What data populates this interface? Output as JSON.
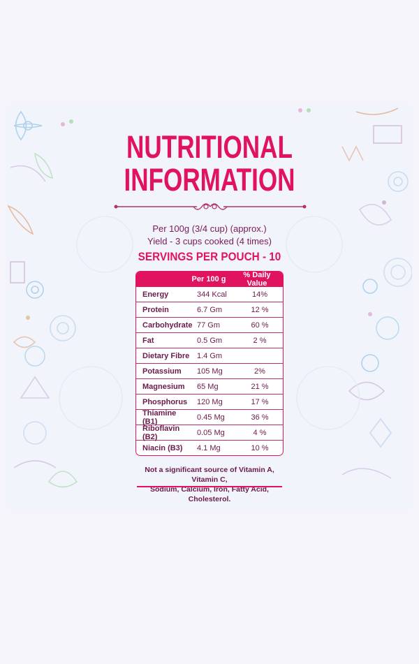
{
  "title": {
    "line1": "NUTRITIONAL",
    "line2": "INFORMATION"
  },
  "subtitle": {
    "line1": "Per 100g (3/4 cup) (approx.)",
    "line2": "Yield - 3 cups cooked (4 times)"
  },
  "servings": "SERVINGS PER POUCH - 10",
  "table": {
    "headers": [
      "",
      "Per 100 g",
      "% Daily Value"
    ],
    "rows": [
      {
        "nutrient": "Energy",
        "per100": "344 Kcal",
        "dv": "14%"
      },
      {
        "nutrient": "Protein",
        "per100": "6.7 Gm",
        "dv": "12 %"
      },
      {
        "nutrient": "Carbohydrate",
        "per100": "77 Gm",
        "dv": "60 %"
      },
      {
        "nutrient": "Fat",
        "per100": "0.5 Gm",
        "dv": "2 %"
      },
      {
        "nutrient": "Dietary Fibre",
        "per100": "1.4 Gm",
        "dv": ""
      },
      {
        "nutrient": "Potassium",
        "per100": "105 Mg",
        "dv": "2%"
      },
      {
        "nutrient": "Magnesium",
        "per100": "65 Mg",
        "dv": "21 %"
      },
      {
        "nutrient": "Phosphorus",
        "per100": "120 Mg",
        "dv": "17 %"
      },
      {
        "nutrient": "Thiamine (B1)",
        "per100": "0.45 Mg",
        "dv": "36 %"
      },
      {
        "nutrient": "Riboflavin (B2)",
        "per100": "0.05 Mg",
        "dv": "4 %"
      },
      {
        "nutrient": "Niacin (B3)",
        "per100": "4.1 Mg",
        "dv": "10 %"
      }
    ]
  },
  "footnote": {
    "line1": "Not a significant source of Vitamin A, Vitamin C,",
    "line2": "Sodium, Calcium, Iron, Fatty Acid, Cholesterol."
  },
  "colors": {
    "accent": "#e1135e",
    "text": "#6a1a4b",
    "background": "#f1f4fb"
  },
  "icons": [
    "flourish-divider-icon",
    "floral-doodle-background"
  ]
}
